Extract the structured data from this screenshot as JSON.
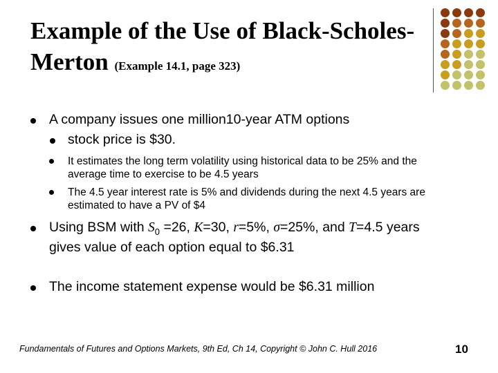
{
  "title": {
    "main": "Example of the Use of Black-Scholes-Merton",
    "sub": "(Example 14.1, page 323)"
  },
  "decor_colors": [
    "#8b3a10",
    "#b5651d",
    "#c89d22",
    "#c2c26a"
  ],
  "bullets": [
    {
      "text": "A company issues one million10-year ATM options"
    },
    {
      "text": "stock price is $30."
    },
    {
      "text": "It estimates the long term volatility using historical data to be 25% and the average time to exercise to be 4.5 years"
    },
    {
      "text": "The 4.5 year interest rate is 5% and dividends during the next 4.5 years are estimated to have a PV of $4"
    },
    {
      "p1": "Using BSM with ",
      "s0": "S",
      "s0_sub": "0",
      "p2": " =26, ",
      "k": "K",
      "p3": "=30, ",
      "r": "r",
      "p4": "=5%, ",
      "sigma": "σ",
      "p5": "=25%, and ",
      "t": "T",
      "p6": "=4.5 years gives value of each option equal to $6.31"
    },
    {
      "text": "The income statement expense would be $6.31 million"
    }
  ],
  "footer": "Fundamentals of Futures and Options Markets,  9th Ed, Ch 14, Copyright © John  C. Hull 2016",
  "page_number": "10"
}
